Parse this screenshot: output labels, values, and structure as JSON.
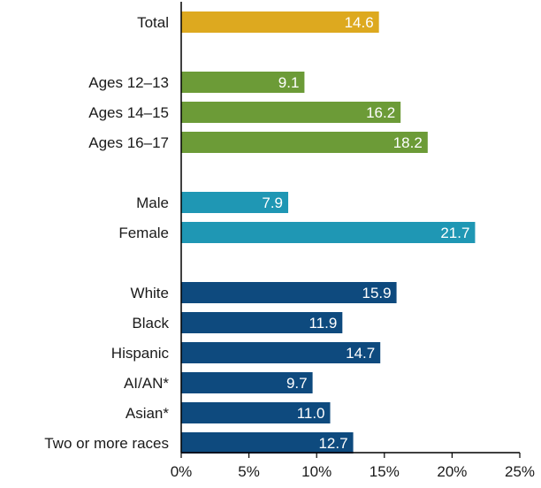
{
  "chart_data": {
    "type": "bar",
    "orientation": "horizontal",
    "title": "",
    "xlabel": "",
    "ylabel": "",
    "xlim": [
      0,
      25
    ],
    "x_ticks": [
      "0%",
      "5%",
      "10%",
      "15%",
      "20%",
      "25%"
    ],
    "grid": false,
    "groups": [
      {
        "color": "#DDA91F",
        "bars": [
          {
            "label": "Total",
            "value": 14.6
          }
        ]
      },
      {
        "color": "#6C9B37",
        "bars": [
          {
            "label": "Ages 12–13",
            "value": 9.1
          },
          {
            "label": "Ages 14–15",
            "value": 16.2
          },
          {
            "label": "Ages 16–17",
            "value": 18.2
          }
        ]
      },
      {
        "color": "#1F97B4",
        "bars": [
          {
            "label": "Male",
            "value": 7.9
          },
          {
            "label": "Female",
            "value": 21.7
          }
        ]
      },
      {
        "color": "#0E4A7E",
        "bars": [
          {
            "label": "White",
            "value": 15.9
          },
          {
            "label": "Black",
            "value": 11.9
          },
          {
            "label": "Hispanic",
            "value": 14.7
          },
          {
            "label": "AI/AN*",
            "value": 9.7
          },
          {
            "label": "Asian*",
            "value": 11.0
          },
          {
            "label": "Two or more races",
            "value": 12.7
          }
        ]
      }
    ]
  }
}
